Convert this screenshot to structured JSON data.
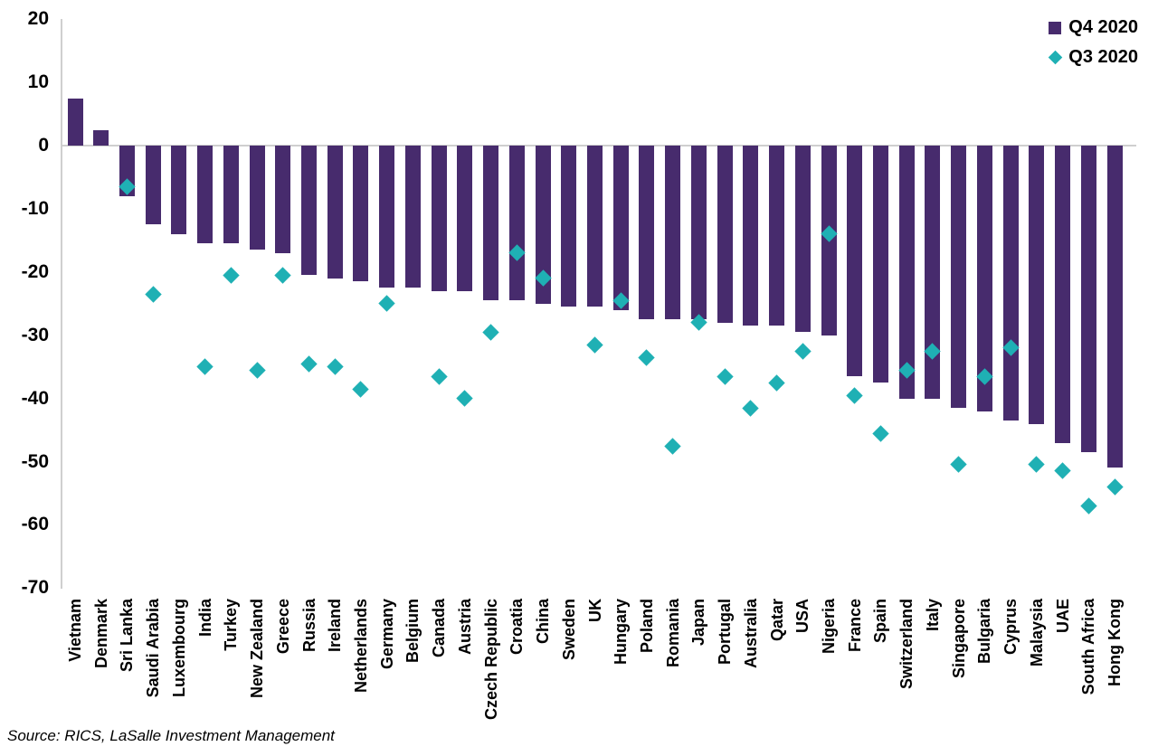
{
  "chart_data": {
    "type": "bar",
    "title": "",
    "xlabel": "",
    "ylabel": "",
    "ylim": [
      -70,
      20
    ],
    "yticks": [
      20,
      10,
      0,
      -10,
      -20,
      -30,
      -40,
      -50,
      -60,
      -70
    ],
    "grid": false,
    "legend_position": "top-right",
    "source": "Source: RICS, LaSalle Investment Management",
    "categories": [
      "Vietnam",
      "Denmark",
      "Sri Lanka",
      "Saudi Arabia",
      "Luxembourg",
      "India",
      "Turkey",
      "New Zealand",
      "Greece",
      "Russia",
      "Ireland",
      "Netherlands",
      "Germany",
      "Belgium",
      "Canada",
      "Austria",
      "Czech Republic",
      "Croatia",
      "China",
      "Sweden",
      "UK",
      "Hungary",
      "Poland",
      "Romania",
      "Japan",
      "Portugal",
      "Australia",
      "Qatar",
      "USA",
      "Nigeria",
      "France",
      "Spain",
      "Switzerland",
      "Italy",
      "Singapore",
      "Bulgaria",
      "Cyprus",
      "Malaysia",
      "UAE",
      "South Africa",
      "Hong Kong"
    ],
    "series": [
      {
        "name": "Q4 2020",
        "type": "bar",
        "color": "#472b6d",
        "values": [
          7.5,
          2.5,
          -8,
          -12.5,
          -14,
          -15.5,
          -15.5,
          -16.5,
          -17,
          -20.5,
          -21,
          -21.5,
          -22.5,
          -22.5,
          -23,
          -23,
          -24.5,
          -24.5,
          -25,
          -25.5,
          -25.5,
          -26,
          -27.5,
          -27.5,
          -27.5,
          -28,
          -28.5,
          -28.5,
          -29.5,
          -30,
          -36.5,
          -37.5,
          -40,
          -40,
          -41.5,
          -42,
          -43.5,
          -44,
          -47,
          -48.5,
          -51
        ]
      },
      {
        "name": "Q3 2020",
        "type": "scatter",
        "marker": "diamond",
        "color": "#1fb0b4",
        "values": [
          null,
          null,
          -6.5,
          -23.5,
          null,
          -35,
          -20.5,
          -35.5,
          -20.5,
          -34.5,
          -35,
          -38.5,
          -25,
          null,
          -36.5,
          -40,
          -29.5,
          -17,
          -21,
          null,
          -31.5,
          -24.5,
          -33.5,
          -47.5,
          -28,
          -36.5,
          -41.5,
          -37.5,
          -32.5,
          -14,
          -39.5,
          -45.5,
          -35.5,
          -32.5,
          -50.5,
          -36.5,
          -32,
          -50.5,
          -51.5,
          -57,
          -54
        ]
      }
    ]
  }
}
